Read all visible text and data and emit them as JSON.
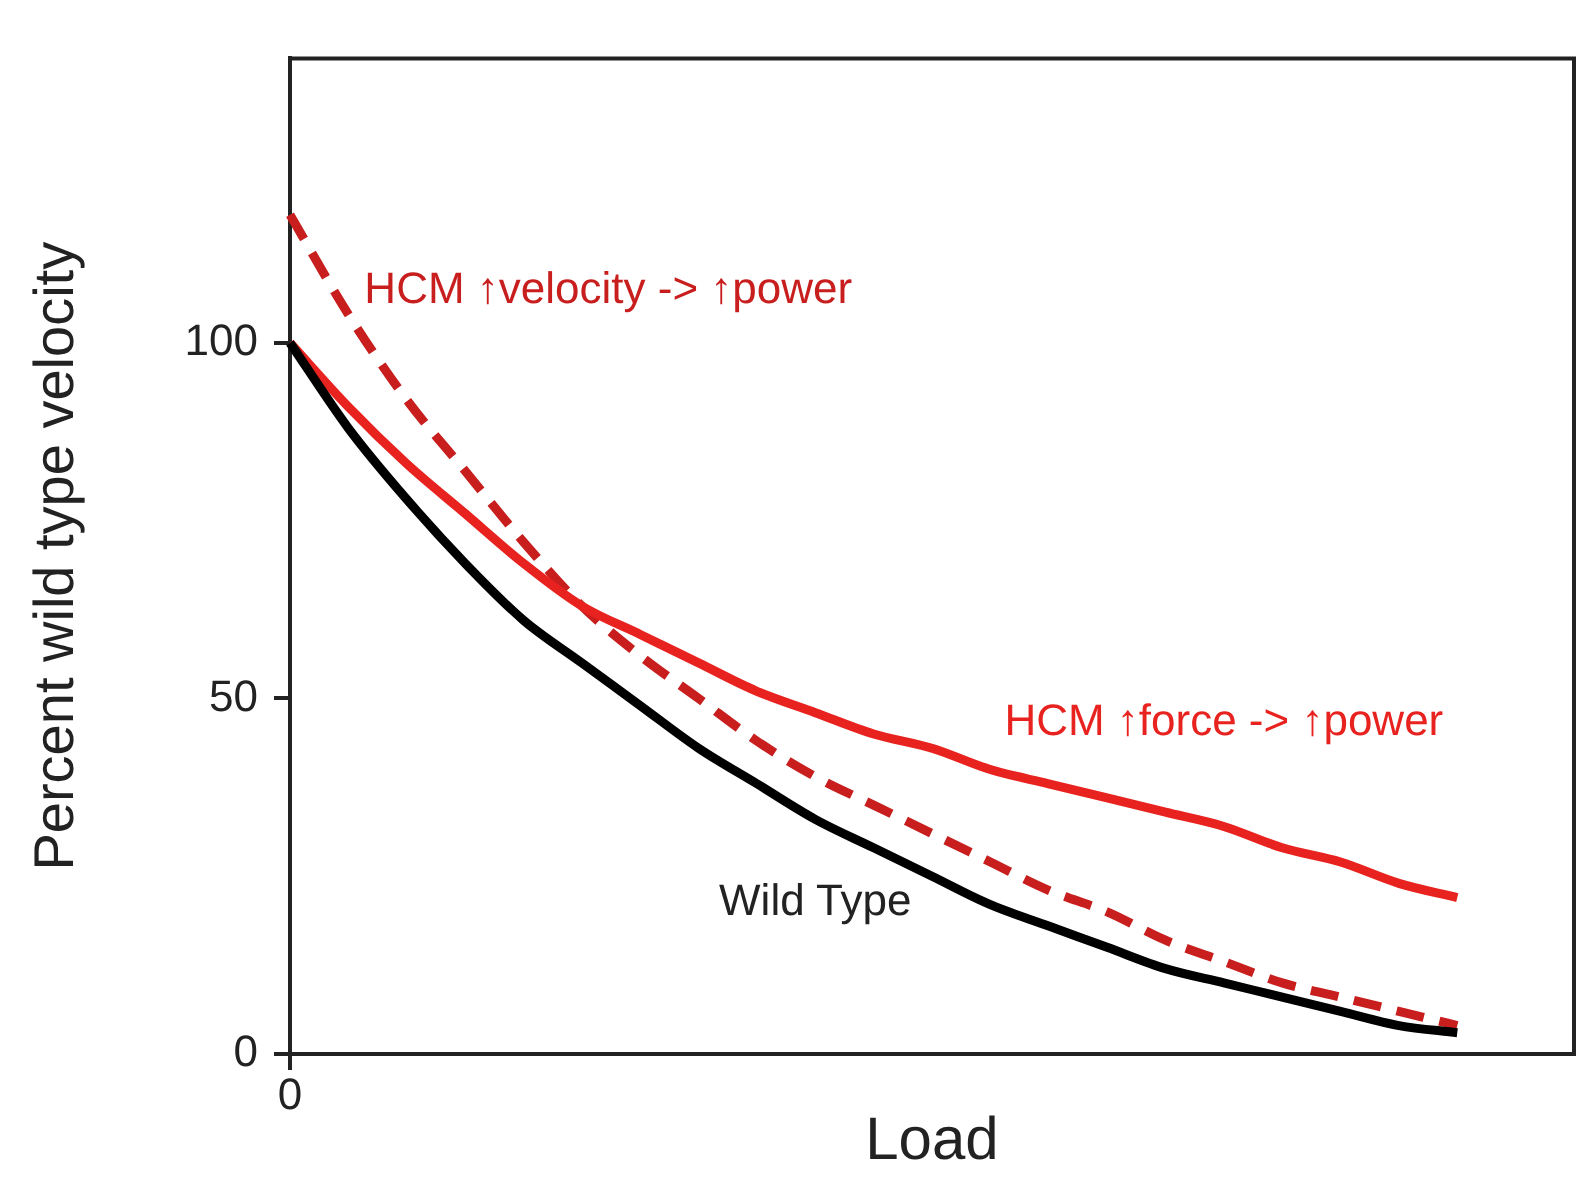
{
  "chart_data": {
    "type": "line",
    "xlabel": "Load",
    "ylabel": "Percent wild type velocity",
    "categories": [
      "0",
      null,
      null,
      null,
      null,
      null,
      null,
      null,
      null,
      null,
      null,
      null,
      null,
      null,
      null,
      null,
      null,
      null,
      null,
      null,
      null,
      null,
      null
    ],
    "series": [
      {
        "name": "Wild Type",
        "color": "#000000",
        "line_style": "solid",
        "values": [
          100,
          88,
          78,
          69,
          61,
          55,
          49,
          43,
          38,
          33,
          29,
          25,
          21,
          18,
          15,
          12,
          10,
          8,
          6,
          4,
          3,
          null,
          null
        ]
      },
      {
        "name": "HCM ↑force -> ↑power",
        "color": "#e8231f",
        "line_style": "solid",
        "values": [
          100,
          91,
          83,
          76,
          69,
          63,
          59,
          55,
          51,
          48,
          45,
          43,
          40,
          38,
          36,
          34,
          32,
          29,
          27,
          24,
          22,
          null,
          null
        ]
      },
      {
        "name": "HCM ↑velocity -> ↑power",
        "color": "#c81e1e",
        "line_style": "dashed",
        "values": [
          118,
          104,
          92,
          82,
          72,
          63,
          56,
          50,
          44,
          39,
          35,
          31,
          27,
          23,
          20,
          16,
          13,
          10,
          8,
          6,
          4,
          null,
          null
        ]
      }
    ],
    "ylim": [
      0,
      140
    ],
    "yticks": [
      0,
      50,
      100
    ],
    "grid": false,
    "legend": false,
    "marker": "none"
  }
}
